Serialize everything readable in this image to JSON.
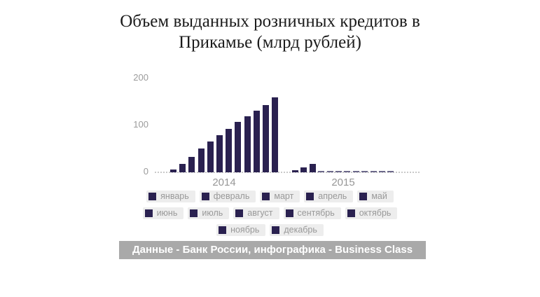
{
  "title": {
    "line1": "Объем выданных розничных кредитов в",
    "line2": "Прикамье (млрд рублей)"
  },
  "chart_data": {
    "type": "bar",
    "title": "Объем выданных розничных кредитов в Прикамье (млрд рублей)",
    "ylabel": "млрд рублей",
    "ylim": [
      0,
      200
    ],
    "y_ticks": [
      0,
      100,
      200
    ],
    "grid": false,
    "legend_position": "bottom",
    "categories": [
      "январь",
      "февраль",
      "март",
      "апрель",
      "май",
      "июнь",
      "июль",
      "август",
      "сентябрь",
      "октябрь",
      "ноябрь",
      "декабрь"
    ],
    "groups": [
      {
        "label": "2014",
        "values": [
          6,
          18,
          33,
          50,
          65,
          79,
          93,
          107,
          120,
          132,
          144,
          160
        ]
      },
      {
        "label": "2015",
        "values": [
          5,
          11,
          18,
          0,
          0,
          0,
          0,
          0,
          0,
          0,
          0,
          0
        ]
      }
    ]
  },
  "legend": {
    "months": [
      "январь",
      "февраль",
      "март",
      "апрель",
      "май",
      "июнь",
      "июль",
      "август",
      "сентябрь",
      "октябрь",
      "ноябрь",
      "декабрь"
    ],
    "rows": [
      5,
      5,
      2
    ]
  },
  "footer": {
    "text": "Данные - Банк России, инфографика - Business Class"
  },
  "colors": {
    "bar": "#2a2150",
    "zero_bar": "#6c688a",
    "axis_dots": "#c9c9c9",
    "tick_text": "#9b9b9b",
    "legend_chip_bg": "#ededed",
    "legend_text": "#999999",
    "footer_bg": "#a9a9a9",
    "footer_text": "#ffffff",
    "title_text": "#1b1b1b"
  }
}
